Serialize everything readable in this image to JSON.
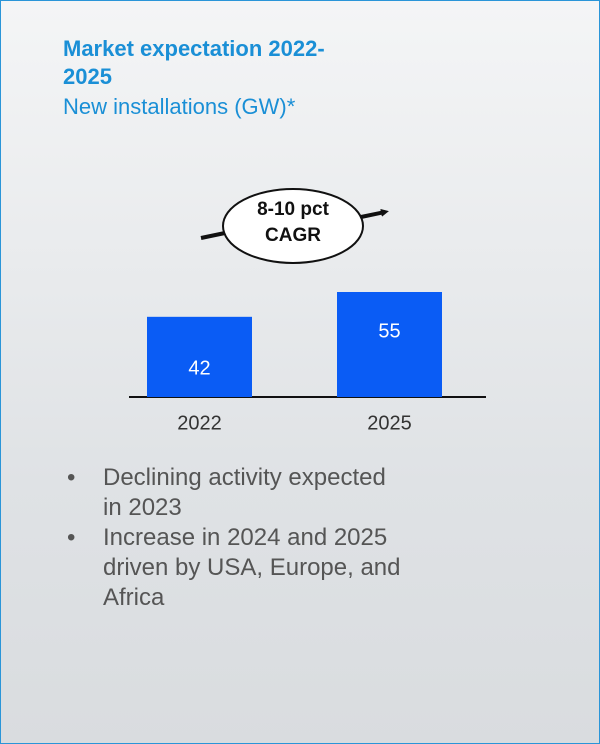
{
  "chart_data": {
    "type": "bar",
    "title": "Market expectation 2022-2025",
    "subtitle": "New installations (GW)*",
    "annotation": "8-10 pct CAGR",
    "categories": [
      "2022",
      "2025"
    ],
    "values": [
      42,
      55
    ],
    "color": "#0a5cf5",
    "bullets": [
      "Declining activity expected in 2023",
      "Increase in 2024 and 2025 driven by USA, Europe, and Africa"
    ]
  }
}
